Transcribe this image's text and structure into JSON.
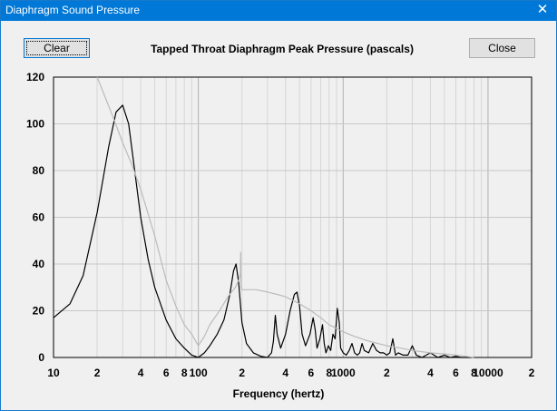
{
  "window": {
    "title": "Diaphragm Sound Pressure",
    "close_glyph": "✕"
  },
  "toolbar": {
    "clear_label": "Clear",
    "close_label": "Close"
  },
  "chart_data": {
    "type": "line",
    "title": "Tapped Throat Diaphragm Peak Pressure (pascals)",
    "xlabel": "Frequency (hertz)",
    "ylabel": "",
    "xscale": "log",
    "xlim": [
      10,
      20000
    ],
    "ylim": [
      0,
      120
    ],
    "yticks": [
      "0",
      "20",
      "40",
      "60",
      "80",
      "100",
      "120"
    ],
    "xticks": [
      {
        "value": 10,
        "label": "10"
      },
      {
        "value": 20,
        "label": "2"
      },
      {
        "value": 40,
        "label": "4"
      },
      {
        "value": 60,
        "label": "6"
      },
      {
        "value": 80,
        "label": "8"
      },
      {
        "value": 100,
        "label": "100"
      },
      {
        "value": 200,
        "label": "2"
      },
      {
        "value": 400,
        "label": "4"
      },
      {
        "value": 600,
        "label": "6"
      },
      {
        "value": 800,
        "label": "8"
      },
      {
        "value": 1000,
        "label": "1000"
      },
      {
        "value": 2000,
        "label": "2"
      },
      {
        "value": 4000,
        "label": "4"
      },
      {
        "value": 6000,
        "label": "6"
      },
      {
        "value": 8000,
        "label": "8"
      },
      {
        "value": 10000,
        "label": "10000"
      },
      {
        "value": 20000,
        "label": "2"
      }
    ],
    "grid": true,
    "series": [
      {
        "color": "#000000",
        "x": [
          10,
          13,
          16,
          20,
          24,
          27,
          30,
          33,
          36,
          40,
          45,
          50,
          60,
          70,
          80,
          90,
          100,
          110,
          120,
          135,
          150,
          165,
          175,
          182,
          190,
          200,
          215,
          240,
          270,
          300,
          320,
          330,
          340,
          350,
          370,
          400,
          430,
          460,
          480,
          500,
          520,
          550,
          590,
          620,
          640,
          660,
          690,
          720,
          740,
          760,
          790,
          820,
          850,
          880,
          910,
          940,
          960,
          1000,
          1050,
          1100,
          1150,
          1200,
          1250,
          1300,
          1350,
          1400,
          1500,
          1600,
          1700,
          1800,
          1900,
          2000,
          2100,
          2200,
          2300,
          2400,
          2600,
          2800,
          3000,
          3200,
          3500,
          4000,
          4500,
          5000,
          5500,
          6000,
          6500,
          7000,
          7500,
          8000
        ],
        "y": [
          17,
          23,
          35,
          62,
          90,
          105,
          108,
          100,
          82,
          60,
          42,
          30,
          16,
          8,
          4,
          1,
          0,
          2,
          5,
          10,
          16,
          27,
          37,
          40,
          32,
          15,
          6,
          2,
          0.5,
          0,
          2,
          7,
          18,
          10,
          4,
          10,
          20,
          27,
          28,
          22,
          10,
          5,
          10,
          17,
          12,
          4,
          8,
          14,
          6,
          2,
          5,
          3,
          10,
          8,
          21,
          15,
          4,
          2,
          1,
          3,
          6,
          2,
          1,
          2,
          6,
          3,
          2,
          6,
          3,
          2,
          2,
          1,
          2,
          8,
          1,
          2,
          1,
          1,
          5,
          1,
          0,
          2,
          0,
          1,
          0,
          0.5,
          0,
          0,
          0,
          0
        ]
      },
      {
        "color": "#bbbbbb",
        "x": [
          20,
          25,
          30,
          35,
          40,
          50,
          60,
          70,
          80,
          90,
          100,
          110,
          120,
          140,
          160,
          180,
          190,
          195,
          196,
          197,
          200,
          250,
          300,
          350,
          400,
          500,
          600,
          700,
          800,
          1000,
          1200,
          1500,
          2000,
          2500,
          3000,
          4000,
          5000,
          6000,
          7000,
          8000
        ],
        "y": [
          120,
          105,
          92,
          82,
          72,
          52,
          33,
          22,
          14,
          10,
          5,
          9,
          14,
          20,
          26,
          30,
          33,
          36,
          45,
          30,
          29,
          29,
          28,
          27,
          26,
          23,
          20,
          17,
          14,
          11,
          9,
          7,
          5,
          4,
          3,
          2,
          1.5,
          1,
          0.5,
          0
        ]
      }
    ]
  }
}
